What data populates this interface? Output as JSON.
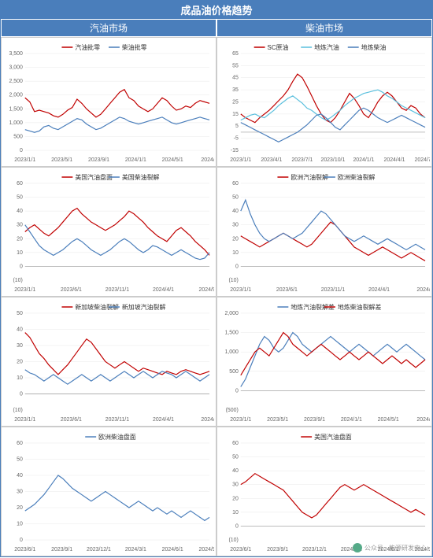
{
  "main_title": "成品油价格趋势",
  "col_headers": [
    "汽油市场",
    "柴油市场"
  ],
  "colors": {
    "red": "#c00000",
    "blue": "#4a7ebb",
    "cyan": "#5bc0de",
    "grid": "#e8e8e8",
    "axis": "#999",
    "neg": "#c00000"
  },
  "watermark": {
    "text": "公众号 · 能源研发中心"
  },
  "charts": [
    {
      "ylim": [
        0,
        3500
      ],
      "yticks": [
        0,
        500,
        1000,
        1500,
        2000,
        2500,
        3000,
        3500
      ],
      "xticks": [
        "2023/1/1",
        "2023/5/1",
        "2023/9/1",
        "2024/1/1",
        "2024/5/1",
        "2024/9"
      ],
      "legend": [
        {
          "label": "汽油批零",
          "color": "#c00000"
        },
        {
          "label": "柴油批零",
          "color": "#4a7ebb"
        }
      ],
      "series": [
        {
          "color": "#c00000",
          "pts": [
            1900,
            1750,
            1400,
            1450,
            1400,
            1350,
            1250,
            1200,
            1300,
            1450,
            1550,
            1850,
            1700,
            1500,
            1350,
            1200,
            1300,
            1500,
            1700,
            1900,
            2100,
            2200,
            1900,
            1800,
            1600,
            1500,
            1400,
            1500,
            1700,
            1900,
            1800,
            1600,
            1450,
            1500,
            1600,
            1550,
            1700,
            1800,
            1750,
            1700
          ]
        },
        {
          "color": "#4a7ebb",
          "pts": [
            750,
            700,
            650,
            700,
            850,
            900,
            800,
            750,
            850,
            950,
            1050,
            1150,
            1100,
            950,
            850,
            750,
            800,
            900,
            1000,
            1100,
            1200,
            1150,
            1050,
            1000,
            950,
            1000,
            1050,
            1100,
            1150,
            1200,
            1100,
            1000,
            950,
            1000,
            1050,
            1100,
            1150,
            1200,
            1150,
            1100
          ]
        }
      ]
    },
    {
      "ylim": [
        -15,
        65
      ],
      "yticks": [
        -15,
        -5,
        5,
        15,
        25,
        35,
        45,
        55,
        65
      ],
      "xticks": [
        "2023/1/1",
        "2023/4/1",
        "2023/7/1",
        "2023/10/1",
        "2024/1/1",
        "2024/4/1",
        "2024/7/1"
      ],
      "legend": [
        {
          "label": "SC原油",
          "color": "#c00000"
        },
        {
          "label": "地炼汽油",
          "color": "#5bc0de"
        },
        {
          "label": "地炼柴油",
          "color": "#4a7ebb"
        }
      ],
      "series": [
        {
          "color": "#c00000",
          "pts": [
            15,
            12,
            10,
            8,
            12,
            15,
            18,
            22,
            26,
            30,
            35,
            42,
            48,
            45,
            38,
            30,
            22,
            15,
            10,
            8,
            12,
            18,
            25,
            32,
            28,
            22,
            15,
            12,
            18,
            25,
            30,
            33,
            30,
            25,
            20,
            18,
            22,
            20,
            15,
            12
          ]
        },
        {
          "color": "#5bc0de",
          "pts": [
            10,
            12,
            14,
            15,
            13,
            12,
            15,
            18,
            22,
            25,
            28,
            30,
            27,
            24,
            20,
            18,
            15,
            12,
            10,
            12,
            15,
            18,
            22,
            25,
            28,
            30,
            32,
            33,
            34,
            35,
            33,
            30,
            28,
            25,
            22,
            20,
            18,
            16,
            14,
            12
          ]
        },
        {
          "color": "#4a7ebb",
          "pts": [
            8,
            6,
            4,
            2,
            0,
            -2,
            -4,
            -6,
            -8,
            -6,
            -4,
            -2,
            0,
            3,
            6,
            10,
            14,
            15,
            12,
            8,
            4,
            2,
            6,
            10,
            14,
            18,
            20,
            18,
            15,
            12,
            10,
            8,
            10,
            12,
            14,
            12,
            10,
            8,
            6,
            4
          ]
        }
      ]
    },
    {
      "ylim": [
        -10,
        60
      ],
      "yticks": [
        0,
        10,
        20,
        30,
        40,
        50,
        60
      ],
      "yneg": "(10)",
      "xticks": [
        "2023/1/1",
        "2023/6/1",
        "2023/11/1",
        "2024/4/1",
        "2024/9/1"
      ],
      "legend": [
        {
          "label": "美国汽油盘面",
          "color": "#c00000"
        },
        {
          "label": "美国柴油裂解",
          "color": "#4a7ebb"
        }
      ],
      "series": [
        {
          "color": "#c00000",
          "pts": [
            25,
            28,
            30,
            27,
            24,
            22,
            25,
            28,
            32,
            36,
            40,
            42,
            38,
            35,
            32,
            30,
            28,
            26,
            28,
            30,
            33,
            36,
            40,
            38,
            35,
            32,
            28,
            25,
            22,
            20,
            18,
            22,
            26,
            28,
            25,
            22,
            18,
            15,
            12,
            8
          ]
        },
        {
          "color": "#4a7ebb",
          "pts": [
            30,
            25,
            20,
            15,
            12,
            10,
            8,
            10,
            12,
            15,
            18,
            20,
            18,
            15,
            12,
            10,
            8,
            10,
            12,
            15,
            18,
            20,
            18,
            15,
            12,
            10,
            12,
            15,
            14,
            12,
            10,
            8,
            10,
            12,
            10,
            8,
            6,
            5,
            6,
            10
          ]
        }
      ]
    },
    {
      "ylim": [
        -10,
        60
      ],
      "yticks": [
        0,
        10,
        20,
        30,
        40,
        50,
        60
      ],
      "yneg": "(10)",
      "xticks": [
        "2023/1/1",
        "2023/6/1",
        "2023/11/1",
        "2024/4/1",
        "2024/9"
      ],
      "legend": [
        {
          "label": "欧洲汽油裂解",
          "color": "#c00000"
        },
        {
          "label": "欧洲柴油裂解",
          "color": "#4a7ebb"
        }
      ],
      "series": [
        {
          "color": "#c00000",
          "pts": [
            22,
            20,
            18,
            16,
            14,
            16,
            18,
            20,
            22,
            24,
            22,
            20,
            18,
            16,
            14,
            16,
            20,
            24,
            28,
            32,
            30,
            26,
            22,
            18,
            14,
            12,
            10,
            8,
            10,
            12,
            14,
            12,
            10,
            8,
            6,
            8,
            10,
            8,
            6,
            4
          ]
        },
        {
          "color": "#4a7ebb",
          "pts": [
            40,
            48,
            38,
            30,
            24,
            20,
            18,
            20,
            22,
            24,
            22,
            20,
            22,
            24,
            28,
            32,
            36,
            40,
            38,
            34,
            30,
            26,
            22,
            20,
            18,
            20,
            22,
            20,
            18,
            16,
            18,
            20,
            18,
            16,
            14,
            12,
            14,
            16,
            14,
            12
          ]
        }
      ]
    },
    {
      "ylim": [
        -10,
        50
      ],
      "yticks": [
        0,
        10,
        20,
        30,
        40,
        50
      ],
      "yneg": "(10)",
      "xticks": [
        "2023/1/1",
        "2023/6/1",
        "2023/11/1",
        "2024/4/1",
        "2024/9"
      ],
      "legend": [
        {
          "label": "新加坡柴油裂解",
          "color": "#c00000"
        },
        {
          "label": "新加坡汽油裂解",
          "color": "#4a7ebb"
        }
      ],
      "series": [
        {
          "color": "#c00000",
          "pts": [
            38,
            35,
            30,
            25,
            22,
            18,
            15,
            12,
            15,
            18,
            22,
            26,
            30,
            34,
            32,
            28,
            24,
            20,
            18,
            16,
            18,
            20,
            18,
            16,
            14,
            16,
            15,
            14,
            13,
            12,
            14,
            13,
            12,
            14,
            15,
            14,
            13,
            12,
            13,
            14
          ]
        },
        {
          "color": "#4a7ebb",
          "pts": [
            15,
            13,
            12,
            10,
            8,
            10,
            12,
            10,
            8,
            6,
            8,
            10,
            12,
            10,
            8,
            10,
            12,
            10,
            8,
            10,
            12,
            14,
            12,
            10,
            12,
            14,
            12,
            10,
            12,
            14,
            13,
            12,
            10,
            12,
            14,
            12,
            10,
            8,
            10,
            12
          ]
        }
      ]
    },
    {
      "ylim": [
        -500,
        2000
      ],
      "yticks": [
        0,
        500,
        1000,
        1500,
        2000
      ],
      "yneg": "(500)",
      "xticks": [
        "2023/1/1",
        "2023/5/1",
        "2023/9/1",
        "2024/1/1",
        "2024/5/1",
        "2024/9"
      ],
      "legend": [
        {
          "label": "地炼汽油裂解差",
          "color": "#4a7ebb"
        },
        {
          "label": "地炼柴油裂解差",
          "color": "#c00000"
        }
      ],
      "series": [
        {
          "color": "#4a7ebb",
          "pts": [
            100,
            300,
            600,
            900,
            1200,
            1400,
            1300,
            1100,
            1000,
            1100,
            1300,
            1500,
            1400,
            1200,
            1100,
            1000,
            1100,
            1200,
            1300,
            1400,
            1300,
            1200,
            1100,
            1000,
            1100,
            1200,
            1100,
            1000,
            900,
            1000,
            1100,
            1200,
            1100,
            1000,
            1100,
            1200,
            1100,
            1000,
            900,
            800
          ]
        },
        {
          "color": "#c00000",
          "pts": [
            400,
            600,
            800,
            1000,
            1100,
            1000,
            900,
            1100,
            1300,
            1500,
            1400,
            1200,
            1100,
            1000,
            900,
            1000,
            1100,
            1200,
            1100,
            1000,
            900,
            800,
            900,
            1000,
            900,
            800,
            900,
            1000,
            900,
            800,
            700,
            800,
            900,
            800,
            700,
            800,
            700,
            600,
            700,
            800
          ]
        }
      ]
    },
    {
      "ylim": [
        0,
        60
      ],
      "yticks": [
        0,
        10,
        20,
        30,
        40,
        50,
        60
      ],
      "xticks": [
        "2023/6/1",
        "2023/9/1",
        "2023/12/1",
        "2024/3/1",
        "2024/6/1",
        "2024/9/1"
      ],
      "legend": [
        {
          "label": "欧洲柴油盘面",
          "color": "#4a7ebb"
        }
      ],
      "series": [
        {
          "color": "#4a7ebb",
          "pts": [
            18,
            20,
            22,
            25,
            28,
            32,
            36,
            40,
            38,
            35,
            32,
            30,
            28,
            26,
            24,
            26,
            28,
            30,
            28,
            26,
            24,
            22,
            20,
            22,
            24,
            22,
            20,
            18,
            20,
            18,
            16,
            18,
            16,
            14,
            16,
            18,
            16,
            14,
            12,
            14
          ]
        }
      ]
    },
    {
      "ylim": [
        -10,
        60
      ],
      "yticks": [
        0,
        10,
        20,
        30,
        40,
        50,
        60
      ],
      "yneg": "(10)",
      "xticks": [
        "2023/6/1",
        "2023/9/1",
        "2023/12/1",
        "2024/3/1",
        "2024/6/1",
        "2024/9/1"
      ],
      "legend": [
        {
          "label": "美国汽油盘面",
          "color": "#c00000"
        }
      ],
      "series": [
        {
          "color": "#c00000",
          "pts": [
            30,
            32,
            35,
            38,
            36,
            34,
            32,
            30,
            28,
            26,
            22,
            18,
            14,
            10,
            8,
            6,
            8,
            12,
            16,
            20,
            24,
            28,
            30,
            28,
            26,
            28,
            30,
            28,
            26,
            24,
            22,
            20,
            18,
            16,
            14,
            12,
            10,
            12,
            10,
            8
          ]
        }
      ]
    }
  ]
}
